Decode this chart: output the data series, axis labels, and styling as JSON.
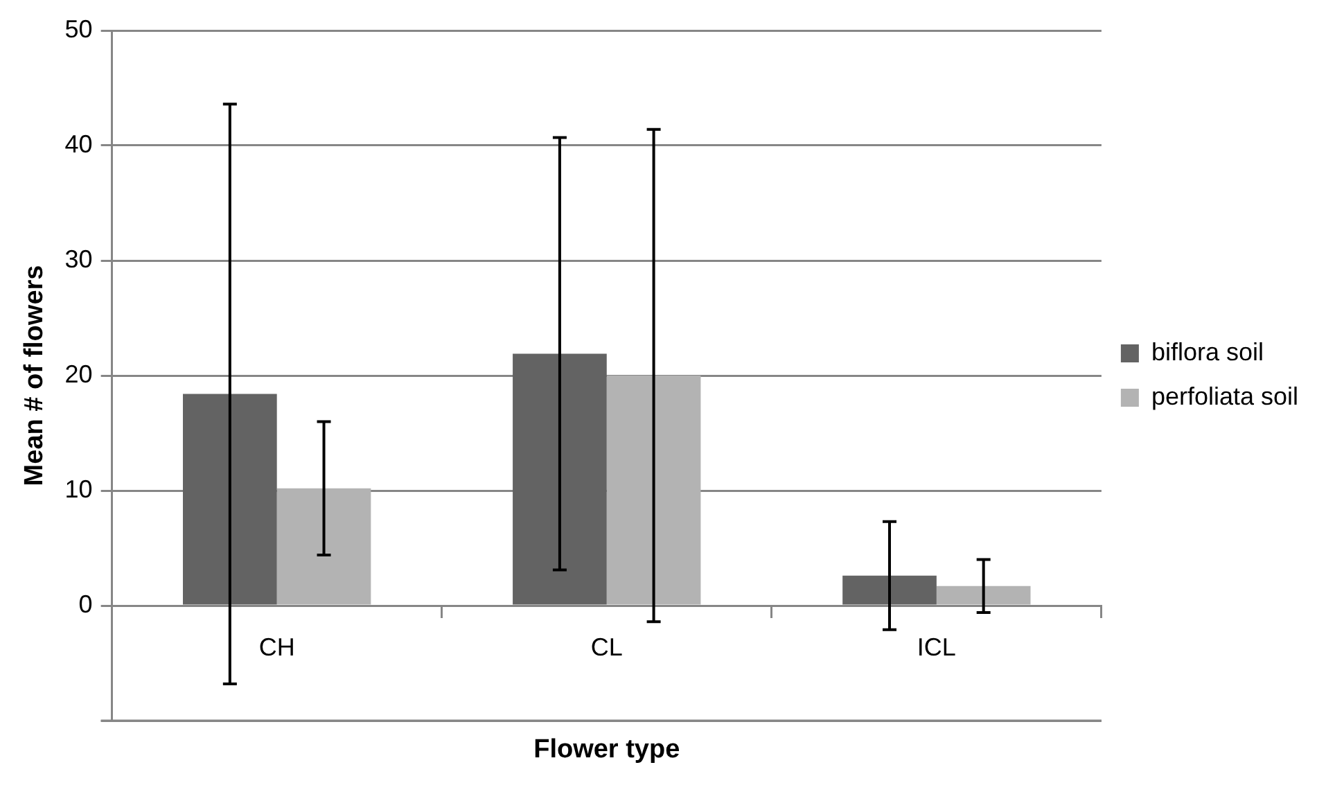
{
  "chart_data": {
    "type": "bar",
    "xlabel": "Flower type",
    "ylabel": "Mean # of flowers",
    "categories": [
      "CH",
      "CL",
      "ICL"
    ],
    "series": [
      {
        "name": "biflora soil",
        "color": "#636363",
        "values": [
          18.4,
          21.9,
          2.6
        ],
        "errors": [
          25.2,
          18.8,
          4.7
        ]
      },
      {
        "name": "perfoliata soil",
        "color": "#b3b3b3",
        "values": [
          10.2,
          20.0,
          1.7
        ],
        "errors": [
          5.8,
          21.4,
          2.3
        ]
      }
    ],
    "ylim": [
      -10,
      50
    ],
    "yticks": [
      {
        "value": -10,
        "label": null
      },
      0,
      10,
      20,
      30,
      40,
      50
    ],
    "grid": "y",
    "legend": "right"
  }
}
